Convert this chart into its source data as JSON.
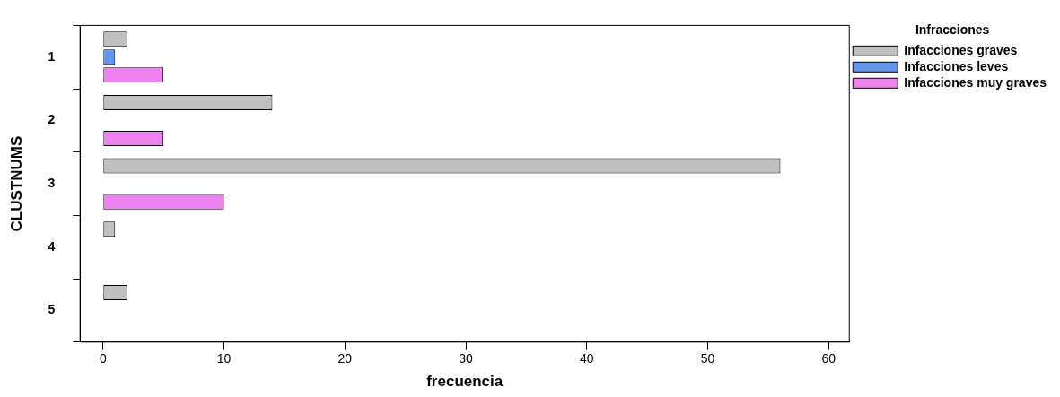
{
  "chart_data": {
    "type": "bar",
    "orientation": "horizontal",
    "xlabel": "frecuencia",
    "ylabel": "CLUSTNUMS",
    "legend_title": "Infracciones",
    "legend": "right",
    "grid": false,
    "categories": [
      "1",
      "2",
      "3",
      "4",
      "5"
    ],
    "series": [
      {
        "name": "Infacciones graves",
        "color": "#c0c0c0",
        "values": [
          2,
          14,
          56,
          1,
          2
        ]
      },
      {
        "name": "Infacciones leves",
        "color": "#6495ed",
        "values": [
          1,
          0,
          0,
          0,
          0
        ]
      },
      {
        "name": "Infacciones muy graves",
        "color": "#ee82ee",
        "values": [
          5,
          5,
          10,
          0,
          0
        ]
      }
    ],
    "xlim": [
      -1.9,
      61.7
    ],
    "xticks": [
      0,
      10,
      20,
      30,
      40,
      50,
      60
    ]
  }
}
